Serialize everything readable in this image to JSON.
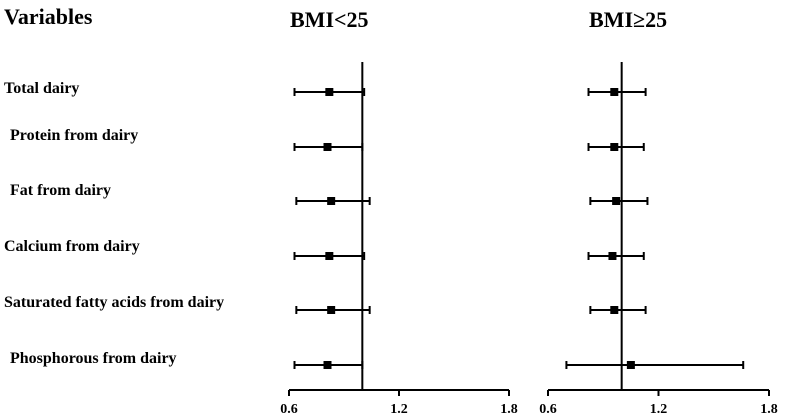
{
  "header": {
    "variables_label": "Variables"
  },
  "chart_data": [
    {
      "type": "forest",
      "title": "BMI<25",
      "xlim": [
        0.6,
        1.8
      ],
      "xticks": [
        "0.6",
        "1.2",
        "1.8"
      ],
      "reference_line": 1.0,
      "categories": [
        "Total dairy",
        "Protein from dairy",
        "Fat from dairy",
        "Calcium from dairy",
        "Saturated fatty acids from dairy",
        "Phosphorous from dairy"
      ],
      "estimates": [
        0.82,
        0.81,
        0.83,
        0.82,
        0.83,
        0.81
      ],
      "ci_lower": [
        0.63,
        0.63,
        0.64,
        0.63,
        0.64,
        0.63
      ],
      "ci_upper": [
        1.01,
        1.0,
        1.04,
        1.01,
        1.04,
        1.0
      ]
    },
    {
      "type": "forest",
      "title": "BMI≥25",
      "xlim": [
        0.6,
        1.8
      ],
      "xticks": [
        "0.6",
        "1.2",
        "1.8"
      ],
      "reference_line": 1.0,
      "categories": [
        "Total dairy",
        "Protein from dairy",
        "Fat from dairy",
        "Calcium from dairy",
        "Saturated fatty acids from dairy",
        "Phosphorous from dairy"
      ],
      "estimates": [
        0.96,
        0.96,
        0.97,
        0.95,
        0.96,
        1.05
      ],
      "ci_lower": [
        0.82,
        0.82,
        0.83,
        0.82,
        0.83,
        0.7
      ],
      "ci_upper": [
        1.13,
        1.12,
        1.14,
        1.12,
        1.13,
        1.66
      ]
    }
  ]
}
